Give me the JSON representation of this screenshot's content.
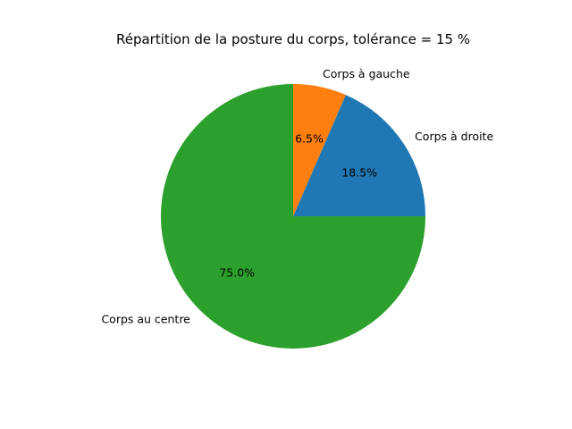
{
  "chart_data": {
    "type": "pie",
    "title": "Répartition de la posture du corps, tolérance = 15 %",
    "slices": [
      {
        "label": "Corps à droite",
        "value": 18.5,
        "pct_label": "18.5%",
        "color": "#1f77b4"
      },
      {
        "label": "Corps à gauche",
        "value": 6.5,
        "pct_label": "6.5%",
        "color": "#ff7f0e"
      },
      {
        "label": "Corps au centre",
        "value": 75.0,
        "pct_label": "75.0%",
        "color": "#2ca02c"
      }
    ],
    "start_angle_deg": 0,
    "direction": "counterclockwise",
    "legend": "none"
  }
}
